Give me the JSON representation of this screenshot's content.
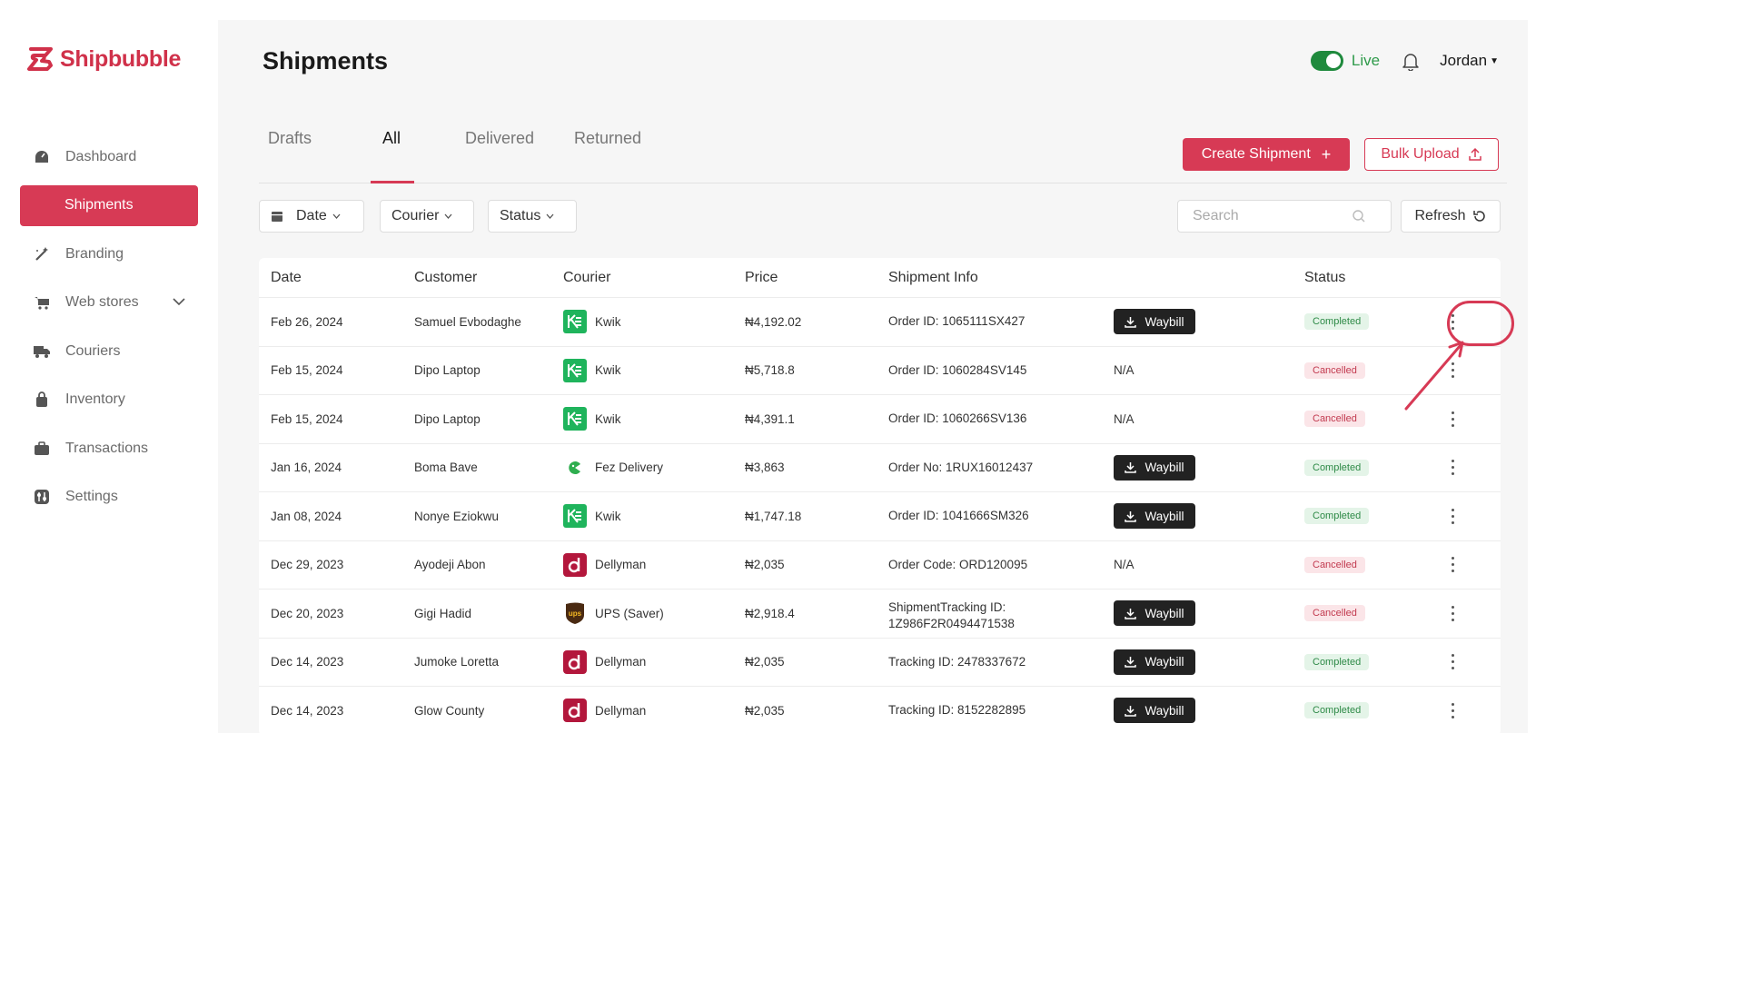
{
  "app": {
    "logo_text": "Shipbubble",
    "brand_color": "#d73a55"
  },
  "sidebar": {
    "items": [
      {
        "label": "Dashboard",
        "icon": "dashboard-icon",
        "active": false
      },
      {
        "label": "Shipments",
        "icon": "box-icon",
        "active": true
      },
      {
        "label": "Branding",
        "icon": "wand-icon",
        "active": false
      },
      {
        "label": "Web stores",
        "icon": "store-icon",
        "active": false,
        "expandable": true
      },
      {
        "label": "Couriers",
        "icon": "truck-icon",
        "active": false
      },
      {
        "label": "Inventory",
        "icon": "bag-icon",
        "active": false
      },
      {
        "label": "Transactions",
        "icon": "briefcase-icon",
        "active": false
      },
      {
        "label": "Settings",
        "icon": "settings-icon",
        "active": false
      }
    ]
  },
  "header": {
    "title": "Shipments",
    "live_label": "Live",
    "live_on": true,
    "user_name": "Jordan"
  },
  "tabs": [
    "Drafts",
    "All",
    "Delivered",
    "Returned"
  ],
  "active_tab": "All",
  "actions": {
    "create_label": "Create Shipment",
    "bulk_label": "Bulk Upload"
  },
  "filters": {
    "date_label": "Date",
    "courier_label": "Courier",
    "status_label": "Status",
    "search_placeholder": "Search",
    "refresh_label": "Refresh"
  },
  "table": {
    "columns": [
      "Date",
      "Customer",
      "Courier",
      "Price",
      "Shipment Info",
      "",
      "Status"
    ],
    "waybill_label": "Waybill",
    "rows": [
      {
        "date": "Feb 26, 2024",
        "customer": "Samuel Evbodaghe",
        "courier": "Kwik",
        "courier_logo": "kwik-logo",
        "price": "₦4,192.02",
        "info": "Order ID: 1065111SX427",
        "waybill": true,
        "status": "Completed"
      },
      {
        "date": "Feb 15, 2024",
        "customer": "Dipo Laptop",
        "courier": "Kwik",
        "courier_logo": "kwik-logo",
        "price": "₦5,718.8",
        "info": "Order ID: 1060284SV145",
        "waybill": false,
        "waybill_text": "N/A",
        "status": "Cancelled"
      },
      {
        "date": "Feb 15, 2024",
        "customer": "Dipo Laptop",
        "courier": "Kwik",
        "courier_logo": "kwik-logo",
        "price": "₦4,391.1",
        "info": "Order ID: 1060266SV136",
        "waybill": false,
        "waybill_text": "N/A",
        "status": "Cancelled"
      },
      {
        "date": "Jan 16, 2024",
        "customer": "Boma Bave",
        "courier": "Fez Delivery",
        "courier_logo": "fez-logo",
        "price": "₦3,863",
        "info": "Order No: 1RUX16012437",
        "waybill": true,
        "status": "Completed"
      },
      {
        "date": "Jan 08, 2024",
        "customer": "Nonye Eziokwu",
        "courier": "Kwik",
        "courier_logo": "kwik-logo",
        "price": "₦1,747.18",
        "info": "Order ID: 1041666SM326",
        "waybill": true,
        "status": "Completed"
      },
      {
        "date": "Dec 29, 2023",
        "customer": "Ayodeji Abon",
        "courier": "Dellyman",
        "courier_logo": "dellyman-logo",
        "price": "₦2,035",
        "info": "Order Code: ORD120095",
        "waybill": false,
        "waybill_text": "N/A",
        "status": "Cancelled"
      },
      {
        "date": "Dec 20, 2023",
        "customer": "Gigi Hadid",
        "courier": "UPS (Saver)",
        "courier_logo": "ups-logo",
        "price": "₦2,918.4",
        "info": "ShipmentTracking ID:",
        "info_line2": "1Z986F2R0494471538",
        "waybill": true,
        "status": "Cancelled"
      },
      {
        "date": "Dec 14, 2023",
        "customer": "Jumoke Loretta",
        "courier": "Dellyman",
        "courier_logo": "dellyman-logo",
        "price": "₦2,035",
        "info": "Tracking ID: 2478337672",
        "waybill": true,
        "status": "Completed"
      },
      {
        "date": "Dec 14, 2023",
        "customer": "Glow County",
        "courier": "Dellyman",
        "courier_logo": "dellyman-logo",
        "price": "₦2,035",
        "info": "Tracking ID: 8152282895",
        "waybill": true,
        "status": "Completed"
      }
    ]
  },
  "colors": {
    "kwik": "#1fb45c",
    "fez": "#2fae4f",
    "dellyman": "#b3173c",
    "ups": "#4a2a12",
    "annotation": "#d73a55"
  }
}
